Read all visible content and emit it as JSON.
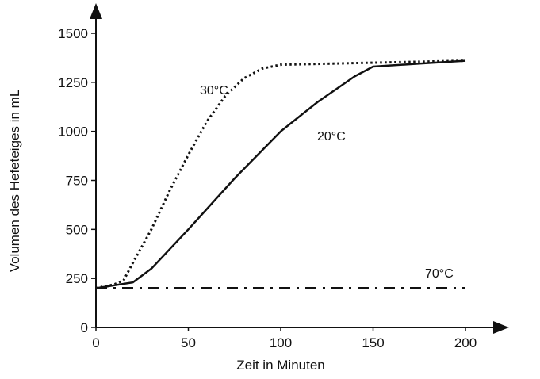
{
  "chart_data": {
    "type": "line",
    "title": "",
    "xlabel": "Zeit in Minuten",
    "ylabel": "Volumen des Hefeteiges in mL",
    "xlim": [
      0,
      200
    ],
    "ylim": [
      0,
      1500
    ],
    "xticks": [
      "0",
      "50",
      "100",
      "150",
      "200"
    ],
    "yticks": [
      "0",
      "250",
      "500",
      "750",
      "1000",
      "1250",
      "1500"
    ],
    "grid": false,
    "series": [
      {
        "name": "30°C",
        "style": "dotted",
        "x": [
          0,
          10,
          15,
          20,
          30,
          40,
          50,
          60,
          70,
          80,
          90,
          100,
          150,
          200
        ],
        "y": [
          200,
          220,
          240,
          330,
          500,
          700,
          880,
          1050,
          1180,
          1270,
          1320,
          1340,
          1350,
          1360
        ]
      },
      {
        "name": "20°C",
        "style": "solid",
        "x": [
          0,
          10,
          20,
          30,
          50,
          75,
          100,
          120,
          140,
          150,
          175,
          200
        ],
        "y": [
          200,
          215,
          230,
          300,
          500,
          760,
          1000,
          1150,
          1280,
          1330,
          1345,
          1360
        ]
      },
      {
        "name": "70°C",
        "style": "dash-dot",
        "x": [
          0,
          200
        ],
        "y": [
          200,
          200
        ]
      }
    ]
  }
}
